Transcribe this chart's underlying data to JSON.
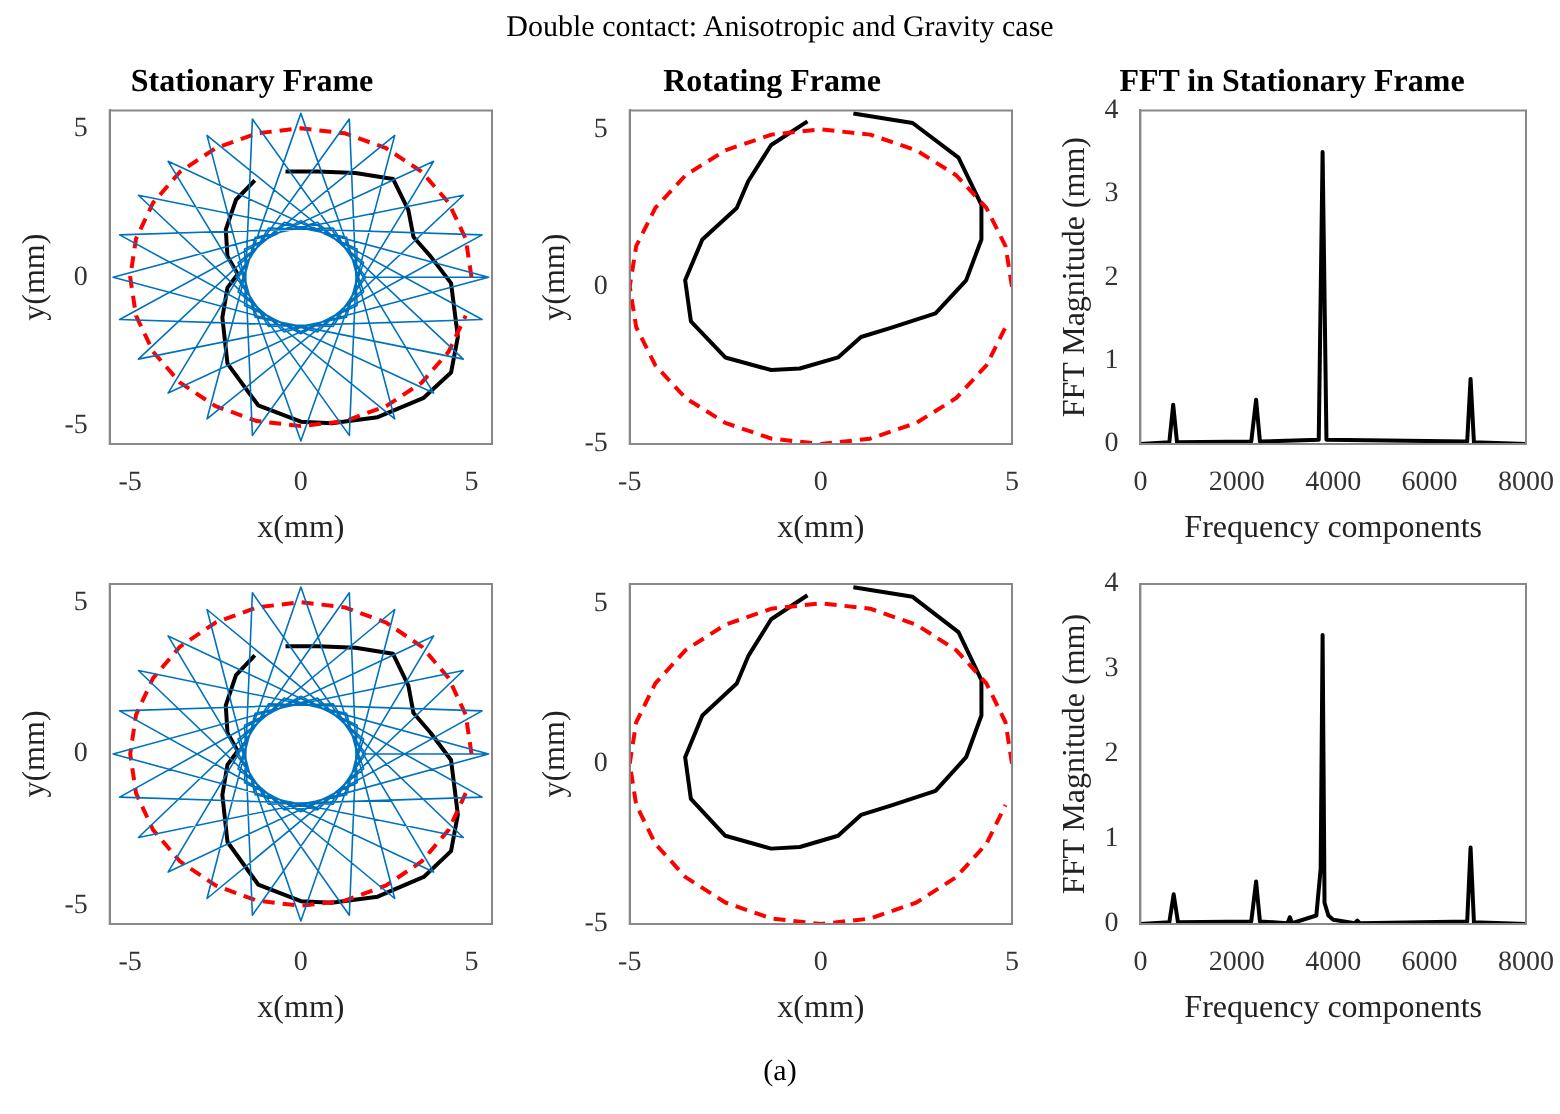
{
  "chart_data": [
    {
      "type": "line",
      "title": "Stationary Frame",
      "xlabel": "x(mm)",
      "ylabel": "y(mm)",
      "xlim": [
        -5.6,
        5.6
      ],
      "ylim": [
        -5.6,
        5.6
      ],
      "xticks": [
        -5,
        0,
        5
      ],
      "yticks": [
        -5,
        0,
        5
      ],
      "annotations": [
        "Double contact: Anisotropic and Gravity case"
      ],
      "series": [
        {
          "color": "#0072bd",
          "x": [
            5.5,
            -0.49,
            -4.76,
            1.34,
            2.75,
            -1.84,
            0,
            1.84,
            -2.75,
            -1.34,
            4.76,
            0.49,
            -5.5,
            0.49,
            4.76,
            -1.34,
            -2.75,
            1.84,
            0,
            -1.84,
            2.75,
            1.34,
            -4.76,
            -0.49,
            5.5,
            1.9,
            -1.42,
            -1.65,
            3.89,
            0.95,
            -5.31,
            0,
            5.31,
            -0.95,
            -3.89,
            1.65,
            1.42,
            -1.9,
            1.42,
            1.65,
            -3.89,
            -0.95,
            5.31,
            0,
            -5.31,
            0.95,
            3.89,
            -1.65,
            -1.42,
            1.9
          ],
          "values": [
            0,
            1.84,
            -2.75,
            -1.34,
            4.76,
            0.49,
            -5.5,
            0.49,
            4.76,
            -1.34,
            -2.75,
            1.84,
            0,
            -1.84,
            2.75,
            1.34,
            -4.76,
            -0.49,
            5.5,
            -0.49,
            -4.76,
            1.34,
            2.75,
            -1.84,
            0,
            0,
            5.31,
            -0.95,
            -3.89,
            1.65,
            1.42,
            -1.9,
            1.42,
            1.65,
            -3.89,
            -0.95,
            5.31,
            0,
            -5.31,
            0.95,
            3.89,
            -1.65,
            -1.42,
            1.9,
            -1.42,
            -1.65,
            3.89,
            0.95,
            -5.31,
            0
          ]
        },
        {
          "color": "#ff0000",
          "line_style": "dashed",
          "x": [
            5,
            4.83,
            4.33,
            3.54,
            2.5,
            1.29,
            0,
            -1.29,
            -2.5,
            -3.54,
            -4.33,
            -4.83,
            -5,
            -4.83,
            -4.33,
            -3.54,
            -2.5,
            -1.29,
            0,
            1.29,
            2.5,
            3.54,
            4.33,
            4.83
          ],
          "values": [
            0,
            1.29,
            2.5,
            3.54,
            4.33,
            4.83,
            5,
            4.83,
            4.33,
            3.54,
            2.5,
            1.29,
            0,
            -1.29,
            -2.5,
            -3.54,
            -4.33,
            -4.83,
            -5,
            -4.83,
            -4.33,
            -3.54,
            -2.5,
            -1.29
          ]
        },
        {
          "color": "#000000",
          "x": [
            -0.45,
            0.5,
            1.6,
            2.7,
            3.15,
            3.3,
            3.8,
            4.4,
            4.6,
            4.4,
            3.6,
            2.25,
            0.9,
            0,
            -1.25,
            -2.15,
            -2.3,
            -2.15,
            -1.85,
            -2.15,
            -2.2,
            -1.9,
            -1.35
          ],
          "values": [
            3.55,
            3.55,
            3.5,
            3.3,
            2.25,
            1.35,
            0.7,
            -0.2,
            -2,
            -3.2,
            -4.05,
            -4.7,
            -4.9,
            -4.85,
            -4.3,
            -2.9,
            -1.35,
            -0.35,
            0.1,
            0.7,
            1.6,
            2.6,
            3.25
          ]
        }
      ]
    },
    {
      "type": "line",
      "title": "Rotating Frame",
      "xlabel": "x(mm)",
      "ylabel": "y(mm)",
      "xlim": [
        -5,
        5
      ],
      "ylim": [
        -5,
        5.6
      ],
      "xticks": [
        -5,
        0,
        5
      ],
      "yticks": [
        -5,
        0,
        5
      ],
      "series": [
        {
          "color": "#ff0000",
          "line_style": "dashed",
          "x": [
            5,
            4.83,
            4.33,
            3.54,
            2.5,
            1.29,
            0,
            -1.29,
            -2.5,
            -3.54,
            -4.33,
            -4.83,
            -5,
            -4.83,
            -4.33,
            -3.54,
            -2.5,
            -1.29,
            0,
            1.29,
            2.5,
            3.54,
            4.33,
            4.83
          ],
          "values": [
            0,
            1.29,
            2.5,
            3.54,
            4.33,
            4.83,
            5,
            4.83,
            4.33,
            3.54,
            2.5,
            1.29,
            0,
            -1.29,
            -2.5,
            -3.54,
            -4.33,
            -4.83,
            -5,
            -4.83,
            -4.33,
            -3.54,
            -2.5,
            -1.29
          ]
        },
        {
          "color": "#000000",
          "x": [
            0.85,
            2.4,
            3.6,
            4.2,
            4.2,
            3.8,
            3,
            1.85,
            1.05,
            0.45,
            -0.55,
            -1.3,
            -2.5,
            -3.4,
            -3.55,
            -3.1,
            -2.2,
            -1.9,
            -1.3,
            -0.35
          ],
          "values": [
            5.5,
            5.2,
            4.1,
            2.6,
            1.5,
            0.2,
            -0.85,
            -1.3,
            -1.6,
            -2.25,
            -2.6,
            -2.65,
            -2.25,
            -1.1,
            0.2,
            1.5,
            2.5,
            3.35,
            4.5,
            5.25
          ]
        }
      ]
    },
    {
      "type": "line",
      "title": "FFT in Stationary Frame",
      "xlabel": "Frequency components",
      "ylabel": "FFT Magnitude (mm)",
      "xlim": [
        0,
        8000
      ],
      "ylim": [
        0,
        4
      ],
      "xticks": [
        0,
        2000,
        4000,
        6000,
        8000
      ],
      "yticks": [
        0,
        1,
        2,
        3,
        4
      ],
      "series": [
        {
          "color": "#000000",
          "x": [
            0,
            600,
            680,
            760,
            2300,
            2400,
            2480,
            3700,
            3780,
            3860,
            6780,
            6850,
            6920,
            8000
          ],
          "values": [
            0,
            0.02,
            0.47,
            0.02,
            0.03,
            0.53,
            0.03,
            0.05,
            3.5,
            0.05,
            0.03,
            0.78,
            0.02,
            0
          ]
        }
      ]
    },
    {
      "type": "line",
      "xlabel": "x(mm)",
      "ylabel": "y(mm)",
      "xlim": [
        -5.6,
        5.6
      ],
      "ylim": [
        -5.6,
        5.6
      ],
      "xticks": [
        -5,
        0,
        5
      ],
      "yticks": [
        -5,
        0,
        5
      ],
      "series": [
        {
          "color": "#0072bd",
          "x": [
            5.5,
            -0.49,
            -4.76,
            1.34,
            2.75,
            -1.84,
            0,
            1.84,
            -2.75,
            -1.34,
            4.76,
            0.49,
            -5.5,
            0.49,
            4.76,
            -1.34,
            -2.75,
            1.84,
            0,
            -1.84,
            2.75,
            1.34,
            -4.76,
            -0.49,
            5.5,
            1.9,
            -1.42,
            -1.65,
            3.89,
            0.95,
            -5.31,
            0,
            5.31,
            -0.95,
            -3.89,
            1.65,
            1.42,
            -1.9,
            1.42,
            1.65,
            -3.89,
            -0.95,
            5.31,
            0,
            -5.31,
            0.95,
            3.89,
            -1.65,
            -1.42,
            1.9
          ],
          "values": [
            0,
            1.84,
            -2.75,
            -1.34,
            4.76,
            0.49,
            -5.5,
            0.49,
            4.76,
            -1.34,
            -2.75,
            1.84,
            0,
            -1.84,
            2.75,
            1.34,
            -4.76,
            -0.49,
            5.5,
            -0.49,
            -4.76,
            1.34,
            2.75,
            -1.84,
            0,
            0,
            5.31,
            -0.95,
            -3.89,
            1.65,
            1.42,
            -1.9,
            1.42,
            1.65,
            -3.89,
            -0.95,
            5.31,
            0,
            -5.31,
            0.95,
            3.89,
            -1.65,
            -1.42,
            1.9,
            -1.42,
            -1.65,
            3.89,
            0.95,
            -5.31,
            0
          ]
        },
        {
          "color": "#ff0000",
          "line_style": "dashed",
          "x": [
            5,
            4.83,
            4.33,
            3.54,
            2.5,
            1.29,
            0,
            -1.29,
            -2.5,
            -3.54,
            -4.33,
            -4.83,
            -5,
            -4.83,
            -4.33,
            -3.54,
            -2.5,
            -1.29,
            0,
            1.29,
            2.5,
            3.54,
            4.33,
            4.83
          ],
          "values": [
            0,
            1.29,
            2.5,
            3.54,
            4.33,
            4.83,
            5,
            4.83,
            4.33,
            3.54,
            2.5,
            1.29,
            0,
            -1.29,
            -2.5,
            -3.54,
            -4.33,
            -4.83,
            -5,
            -4.83,
            -4.33,
            -3.54,
            -2.5,
            -1.29
          ]
        },
        {
          "color": "#000000",
          "x": [
            -0.45,
            0.5,
            1.6,
            2.7,
            3.15,
            3.3,
            3.8,
            4.4,
            4.6,
            4.4,
            3.6,
            2.25,
            0.9,
            0,
            -1.25,
            -2.15,
            -2.3,
            -2.15,
            -1.85,
            -2.15,
            -2.2,
            -1.9,
            -1.35
          ],
          "values": [
            3.55,
            3.55,
            3.5,
            3.3,
            2.25,
            1.35,
            0.7,
            -0.2,
            -2,
            -3.2,
            -4.05,
            -4.7,
            -4.9,
            -4.85,
            -4.3,
            -2.9,
            -1.35,
            -0.35,
            0.1,
            0.7,
            1.6,
            2.6,
            3.25
          ]
        }
      ]
    },
    {
      "type": "line",
      "xlabel": "x(mm)",
      "ylabel": "y(mm)",
      "xlim": [
        -5,
        5
      ],
      "ylim": [
        -5,
        5.6
      ],
      "xticks": [
        -5,
        0,
        5
      ],
      "yticks": [
        -5,
        0,
        5
      ],
      "annotations": [
        "(a)"
      ],
      "series": [
        {
          "color": "#ff0000",
          "line_style": "dashed",
          "x": [
            5,
            4.83,
            4.33,
            3.54,
            2.5,
            1.29,
            0,
            -1.29,
            -2.5,
            -3.54,
            -4.33,
            -4.83,
            -5,
            -4.83,
            -4.33,
            -3.54,
            -2.5,
            -1.29,
            0,
            1.29,
            2.5,
            3.54,
            4.33,
            4.83
          ],
          "values": [
            0,
            1.29,
            2.5,
            3.54,
            4.33,
            4.83,
            5,
            4.83,
            4.33,
            3.54,
            2.5,
            1.29,
            0,
            -1.29,
            -2.5,
            -3.54,
            -4.33,
            -4.83,
            -5,
            -4.83,
            -4.33,
            -3.54,
            -2.5,
            -1.29
          ]
        },
        {
          "color": "#000000",
          "x": [
            0.85,
            2.4,
            3.6,
            4.2,
            4.2,
            3.8,
            3,
            1.85,
            1.05,
            0.45,
            -0.55,
            -1.3,
            -2.5,
            -3.4,
            -3.55,
            -3.1,
            -2.2,
            -1.9,
            -1.3,
            -0.35
          ],
          "values": [
            5.5,
            5.2,
            4.1,
            2.6,
            1.5,
            0.2,
            -0.85,
            -1.3,
            -1.6,
            -2.25,
            -2.6,
            -2.65,
            -2.25,
            -1.1,
            0.2,
            1.5,
            2.5,
            3.35,
            4.5,
            5.25
          ]
        }
      ]
    },
    {
      "type": "line",
      "xlabel": "Frequency components",
      "ylabel": "FFT Magnitude (mm)",
      "xlim": [
        0,
        8000
      ],
      "ylim": [
        0,
        4
      ],
      "xticks": [
        0,
        2000,
        4000,
        6000,
        8000
      ],
      "yticks": [
        0,
        1,
        2,
        3,
        4
      ],
      "series": [
        {
          "color": "#000000",
          "x": [
            0,
            600,
            690,
            780,
            2300,
            2400,
            2480,
            3050,
            3100,
            3150,
            3650,
            3740,
            3780,
            3820,
            3900,
            4000,
            4450,
            4500,
            4550,
            6780,
            6850,
            6920,
            8000
          ],
          "values": [
            0,
            0.02,
            0.35,
            0.02,
            0.03,
            0.5,
            0.03,
            0.01,
            0.08,
            0.01,
            0.1,
            0.65,
            3.4,
            0.25,
            0.1,
            0.05,
            0.01,
            0.04,
            0.01,
            0.03,
            0.9,
            0.02,
            0
          ]
        }
      ]
    }
  ]
}
